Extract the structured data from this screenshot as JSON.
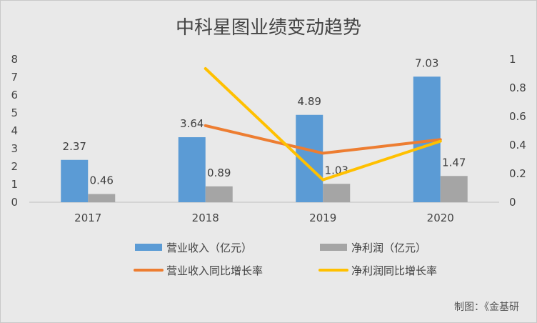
{
  "chart_data": {
    "type": "bar",
    "title": "中科星图业绩变动趋势",
    "categories": [
      "2017",
      "2018",
      "2019",
      "2020"
    ],
    "bar_series": [
      {
        "name": "营业收入（亿元）",
        "values": [
          2.37,
          3.64,
          4.89,
          7.03
        ],
        "labels": [
          "2.37",
          "3.64",
          "4.89",
          "7.03"
        ],
        "color": "#5b9bd5"
      },
      {
        "name": "净利润（亿元）",
        "values": [
          0.46,
          0.89,
          1.03,
          1.47
        ],
        "labels": [
          "0.46",
          "0.89",
          "1.03",
          "1.47"
        ],
        "color": "#a5a5a5"
      }
    ],
    "line_series": [
      {
        "name": "营业收入同比增长率",
        "values": [
          null,
          0.536,
          0.343,
          0.438
        ],
        "color": "#ed7d31",
        "axis": "secondary"
      },
      {
        "name": "净利润同比增长率",
        "values": [
          null,
          0.935,
          0.157,
          0.427
        ],
        "color": "#ffc000",
        "axis": "secondary"
      }
    ],
    "y_left": {
      "ylim": [
        0,
        8
      ],
      "ticks": [
        "0",
        "1",
        "2",
        "3",
        "4",
        "5",
        "6",
        "7",
        "8"
      ]
    },
    "y_right": {
      "ylim": [
        0,
        1
      ],
      "ticks": [
        "0",
        "0.2",
        "0.4",
        "0.6",
        "0.8",
        "1"
      ]
    },
    "grid": false,
    "legend_position": "bottom"
  },
  "credit": "制图：《金基研"
}
